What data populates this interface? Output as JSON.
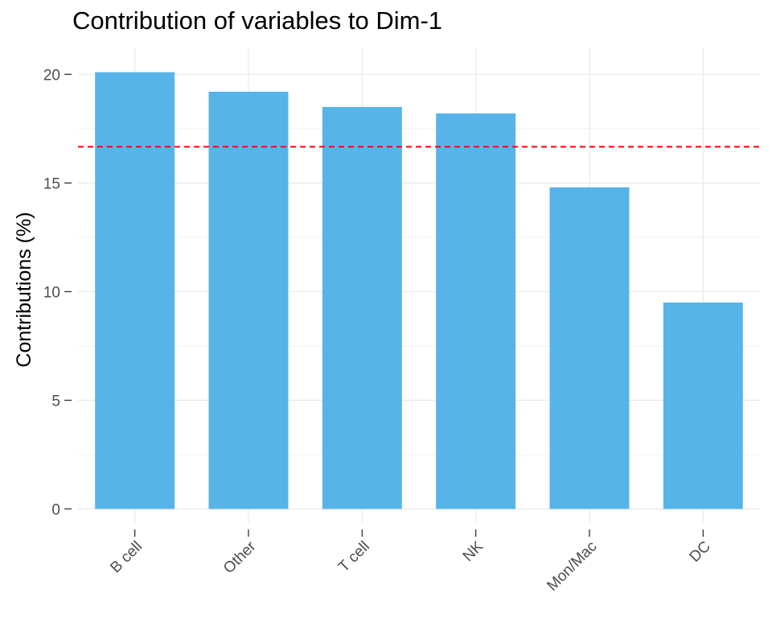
{
  "chart_data": {
    "type": "bar",
    "title": "Contribution of variables to Dim-1",
    "xlabel": "",
    "ylabel": "Contributions (%)",
    "categories": [
      "B cell",
      "Other",
      "T cell",
      "NK",
      "Mon/Mac",
      "DC"
    ],
    "values": [
      20.1,
      19.2,
      18.5,
      18.2,
      14.8,
      9.5
    ],
    "ylim": [
      -0.65,
      21.2
    ],
    "yticks": [
      0,
      5,
      10,
      15,
      20
    ],
    "yticks_labels": [
      "0",
      "5",
      "10",
      "15",
      "20"
    ],
    "reference_line": {
      "value": 16.67,
      "style": "dashed",
      "color": "#ff0000"
    },
    "bar_color": "#56b4e9",
    "grid": true,
    "legend": "none"
  }
}
